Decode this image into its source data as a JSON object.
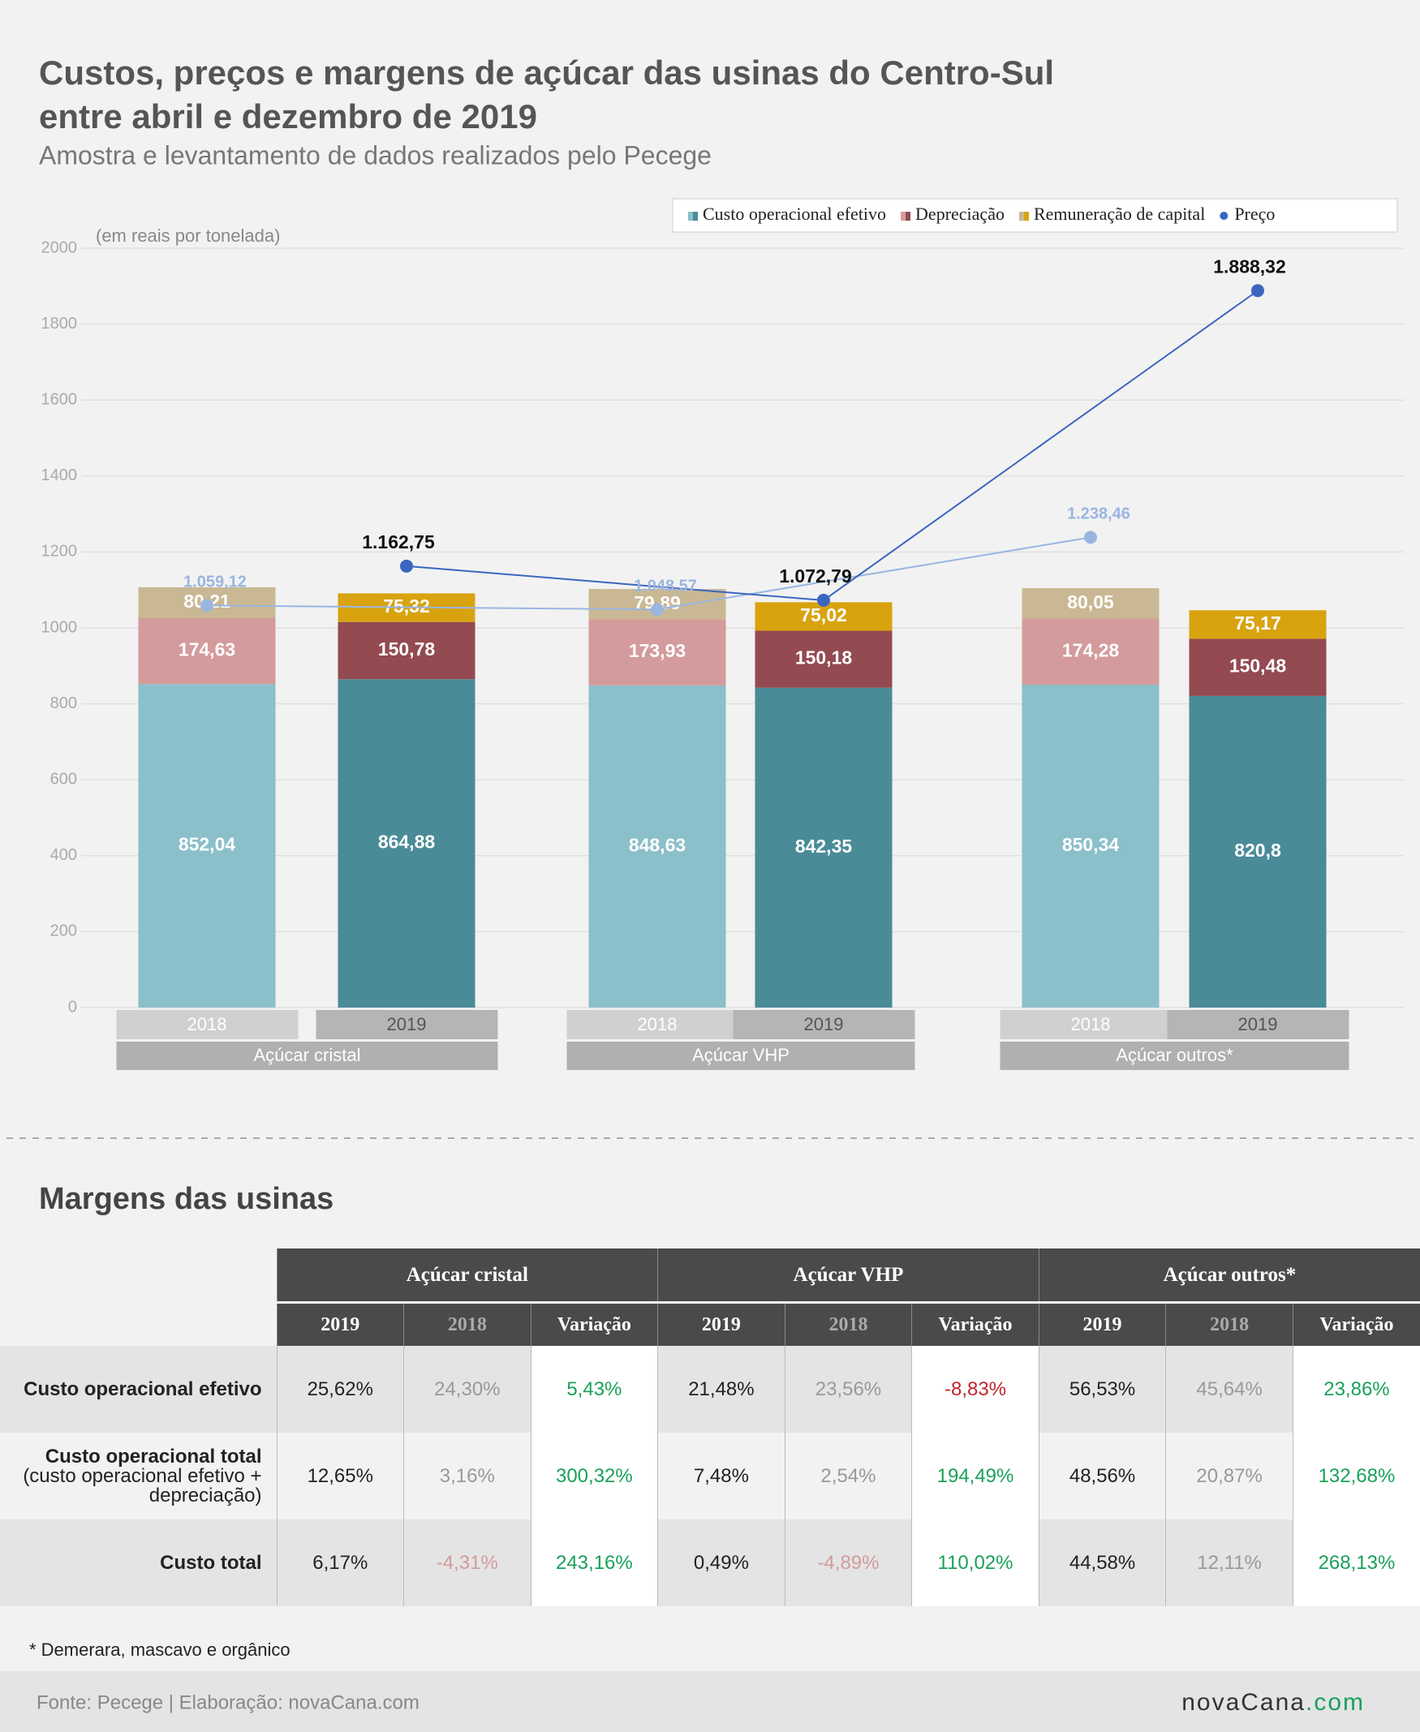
{
  "chart_data": {
    "type": "bar",
    "stacked": true,
    "title": "Custos, preços e margens de açúcar das usinas do Centro-Sul",
    "title_line2": "entre abril e dezembro de 2019",
    "subtitle": "Amostra e levantamento de dados realizados pelo Pecege",
    "unit_label": "(em reais por tonelada)",
    "categories": [
      "2018",
      "2019",
      "2018",
      "2019",
      "2018",
      "2019"
    ],
    "groups": [
      "Açúcar cristal",
      "Açúcar VHP",
      "Açúcar outros*"
    ],
    "series": [
      {
        "name": "Custo operacional efetivo",
        "colors": [
          "#8bbfca",
          "#4a8b98"
        ],
        "values": [
          852.04,
          864.88,
          848.63,
          842.35,
          850.34,
          820.8
        ],
        "value_labels": [
          "852,04",
          "864,88",
          "848,63",
          "842,35",
          "850,34",
          "820,8"
        ]
      },
      {
        "name": "Depreciação",
        "colors": [
          "#d49b9c",
          "#934a50"
        ],
        "values": [
          174.63,
          150.78,
          173.93,
          150.18,
          174.28,
          150.48
        ],
        "value_labels": [
          "174,63",
          "150,78",
          "173,93",
          "150,18",
          "174,28",
          "150,48"
        ]
      },
      {
        "name": "Remuneração de capital",
        "colors": [
          "#c9b893",
          "#d8a30f"
        ],
        "values": [
          80.21,
          75.32,
          79.89,
          75.02,
          80.05,
          75.17
        ],
        "value_labels": [
          "80,21",
          "75,32",
          "79,89",
          "75,02",
          "80,05",
          "75,17"
        ]
      },
      {
        "name": "Preço",
        "type": "line",
        "colors": [
          "#9ab6e0",
          "#3a66c0"
        ],
        "values": [
          1059.12,
          1162.75,
          1048.57,
          1072.79,
          1238.46,
          1888.32
        ],
        "value_labels": [
          "1.059,12",
          "1.162,75",
          "1.048,57",
          "1.072,79",
          "1.238,46",
          "1.888,32"
        ]
      }
    ],
    "ylim": [
      0,
      2000
    ],
    "yticks": [
      0,
      200,
      400,
      600,
      800,
      1000,
      1200,
      1400,
      1600,
      1800,
      2000
    ],
    "grid": true,
    "legend": "top-right"
  },
  "table": {
    "title": "Margens das usinas",
    "groups": [
      "Açúcar cristal",
      "Açúcar VHP",
      "Açúcar outros*"
    ],
    "columns": [
      "2019",
      "2018",
      "Variação",
      "2019",
      "2018",
      "Variação",
      "2019",
      "2018",
      "Variação"
    ],
    "rows": [
      {
        "label": "Custo operacional efetivo",
        "cells": [
          "25,62%",
          "24,30%",
          "5,43%",
          "21,48%",
          "23,56%",
          "-8,83%",
          "56,53%",
          "45,64%",
          "23,86%"
        ]
      },
      {
        "label": "Custo operacional total",
        "sublabel": "(custo operacional efetivo + depreciação)",
        "cells": [
          "12,65%",
          "3,16%",
          "300,32%",
          "7,48%",
          "2,54%",
          "194,49%",
          "48,56%",
          "20,87%",
          "132,68%"
        ]
      },
      {
        "label": "Custo total",
        "cells": [
          "6,17%",
          "-4,31%",
          "243,16%",
          "0,49%",
          "-4,89%",
          "110,02%",
          "44,58%",
          "12,11%",
          "268,13%"
        ]
      }
    ]
  },
  "footnote": "* Demerara, mascavo e orgânico",
  "source": "Fonte: Pecege | Elaboração: novaCana.com",
  "logo": {
    "name": "novaCana",
    "suffix": ".com"
  }
}
